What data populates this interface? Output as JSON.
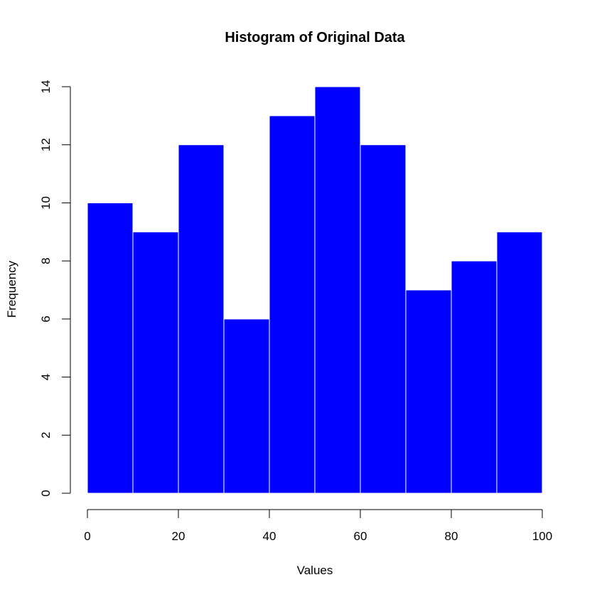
{
  "chart_data": {
    "type": "bar",
    "title": "Histogram of Original Data",
    "xlabel": "Values",
    "ylabel": "Frequency",
    "bins": [
      [
        0,
        10
      ],
      [
        10,
        20
      ],
      [
        20,
        30
      ],
      [
        30,
        40
      ],
      [
        40,
        50
      ],
      [
        50,
        60
      ],
      [
        60,
        70
      ],
      [
        70,
        80
      ],
      [
        80,
        90
      ],
      [
        90,
        100
      ]
    ],
    "values": [
      10,
      9,
      12,
      6,
      13,
      14,
      12,
      7,
      8,
      9
    ],
    "xlim": [
      0,
      100
    ],
    "ylim": [
      0,
      14
    ],
    "x_ticks": [
      0,
      20,
      40,
      60,
      80,
      100
    ],
    "y_ticks": [
      0,
      2,
      4,
      6,
      8,
      10,
      12,
      14
    ],
    "bar_color": "#0000ff",
    "bar_border_color": "#ffffff",
    "grid": false,
    "legend": "none"
  }
}
